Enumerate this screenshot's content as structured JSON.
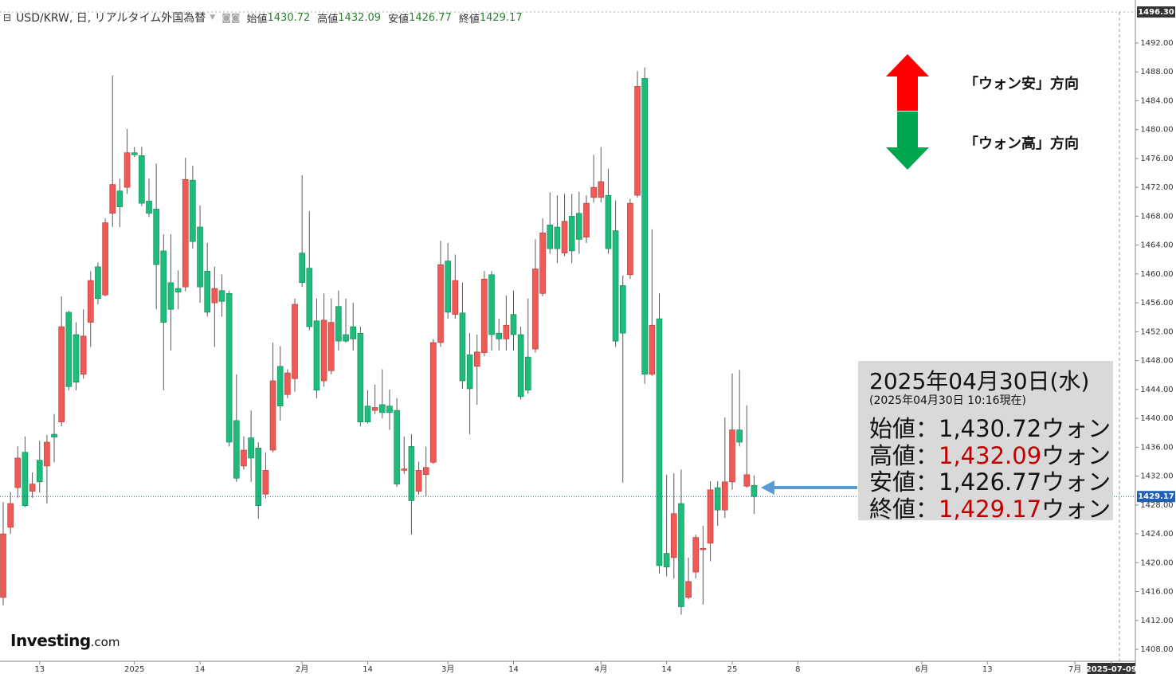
{
  "chart_data": {
    "type": "candlestick",
    "title": "USD/KRW, 日, リアルタイム外国為替",
    "categories": [
      null,
      null,
      null,
      null,
      null,
      "13",
      null,
      null,
      null,
      null,
      null,
      null,
      null,
      null,
      null,
      null,
      null,
      null,
      "2025",
      null,
      null,
      null,
      null,
      null,
      null,
      null,
      null,
      "14",
      null,
      null,
      null,
      null,
      null,
      null,
      null,
      null,
      null,
      null,
      null,
      null,
      null,
      "2月",
      null,
      null,
      null,
      null,
      null,
      null,
      null,
      null,
      "14",
      null,
      null,
      null,
      null,
      null,
      null,
      null,
      null,
      null,
      null,
      "3月",
      null,
      null,
      null,
      null,
      null,
      null,
      null,
      null,
      "14",
      null,
      null,
      null,
      null,
      null,
      null,
      null,
      null,
      null,
      null,
      null,
      "4月",
      null,
      null,
      null,
      null,
      null,
      null,
      null,
      null,
      "14",
      null,
      null,
      null,
      null,
      null,
      null,
      null,
      null,
      "25",
      null,
      null,
      null,
      null,
      null,
      null,
      null,
      null,
      "8",
      null,
      null,
      null,
      null,
      null,
      null,
      null,
      null,
      null,
      null,
      null,
      null,
      null,
      null,
      null,
      null,
      "6月",
      null,
      null,
      null,
      null,
      null,
      null,
      null,
      null,
      "13",
      null,
      null,
      null,
      null,
      null,
      null,
      null,
      null,
      null,
      null,
      null,
      "7月",
      null,
      null,
      null,
      null,
      "2025-07-09"
    ],
    "open": [
      1415.2,
      1424.9,
      1430.4,
      1435.3,
      1429.9,
      1434.2,
      1433.4,
      1437.8,
      1439.5,
      1454.7,
      1451.6,
      1446.1,
      1453.3,
      1461.0,
      1457.1,
      1468.4,
      1471.5,
      1472.0,
      1476.8,
      1476.4,
      1470.1,
      1469.0,
      1463.2,
      1458.8,
      1458.0,
      1458.2,
      1473.0,
      1466.5,
      1460.4,
      1456.0,
      1457.7,
      1457.3,
      1439.7,
      1433.4,
      1437.3,
      1435.9,
      1429.5,
      1435.6,
      1447.2,
      1443.3,
      1445.5,
      1462.9,
      1460.8,
      1453.5,
      1445.2,
      1446.6,
      1455.5,
      1451.6,
      1452.7,
      1451.8,
      1441.7,
      1441.1,
      1441.9,
      1441.7,
      1441.1,
      1432.8,
      1436.1,
      1429.9,
      1432.2,
      1433.9,
      1450.5,
      1461.8,
      1454.4,
      1454.6,
      1448.8,
      1447.2,
      1449.1,
      1459.9,
      1451.8,
      1451.0,
      1454.4,
      1451.6,
      1448.5,
      1449.6,
      1457.3,
      1466.8,
      1466.5,
      1462.9,
      1468.0,
      1468.4,
      1465.1,
      1470.6,
      1470.6,
      1470.9,
      1466.0,
      1458.4,
      1459.9,
      1470.9,
      1487.1,
      1446.1,
      1453.8,
      1421.3,
      1420.7,
      1428.2,
      1415.2,
      1418.7,
      1421.8,
      1422.7,
      1430.4,
      1427.3,
      1431.2,
      1438.4,
      1430.6,
      1430.72,
      null,
      null,
      null,
      null,
      null,
      null,
      null,
      null,
      null,
      null,
      null,
      null,
      null,
      null,
      null,
      null,
      null,
      null,
      null,
      null,
      null,
      null,
      null,
      null,
      null,
      null,
      null,
      null,
      null,
      null,
      null,
      null,
      null,
      null,
      null,
      null,
      null,
      null,
      null,
      null,
      null,
      null,
      null,
      null,
      null,
      null,
      null,
      null,
      null
    ],
    "high": [
      1428.4,
      1429.8,
      1436.1,
      1437.5,
      1432.5,
      1436.9,
      1437.7,
      1440.6,
      1456.9,
      1454.9,
      1453.3,
      1455.1,
      1460.4,
      1461.6,
      1467.7,
      1487.5,
      1473.2,
      1480.1,
      1477.6,
      1477.6,
      1473.2,
      1475.3,
      1465.5,
      1465.5,
      1460.5,
      1476.1,
      1475.0,
      1469.5,
      1464.3,
      1461.0,
      1459.9,
      1457.7,
      1446.1,
      1437.5,
      1441.1,
      1436.7,
      1435.3,
      1450.5,
      1450.0,
      1446.8,
      1456.6,
      1473.7,
      1468.7,
      1456.6,
      1457.3,
      1456.6,
      1457.7,
      1456.6,
      1456.0,
      1452.7,
      1443.9,
      1444.7,
      1446.8,
      1444.0,
      1442.8,
      1437.5,
      1437.8,
      1434.0,
      1436.1,
      1451.0,
      1464.6,
      1464.3,
      1462.7,
      1458.8,
      1451.8,
      1451.6,
      1460.4,
      1460.4,
      1453.8,
      1457.0,
      1457.7,
      1452.7,
      1456.6,
      1464.8,
      1467.7,
      1471.3,
      1470.9,
      1471.1,
      1471.1,
      1471.4,
      1470.9,
      1476.5,
      1477.6,
      1474.6,
      1470.2,
      1459.8,
      1470.4,
      1488.1,
      1488.6,
      1466.2,
      1457.3,
      1432.2,
      1432.4,
      1432.9,
      1420.7,
      1423.9,
      1425.1,
      1431.3,
      1431.3,
      1440.1,
      1446.2,
      1446.7,
      1441.8,
      1432.09,
      null,
      null,
      null,
      null,
      null,
      null,
      null,
      null,
      null,
      null,
      null,
      null,
      null,
      null,
      null,
      null,
      null,
      null,
      null,
      null,
      null,
      null,
      null,
      null,
      null,
      null,
      null,
      null,
      null,
      null,
      null,
      null,
      null,
      null,
      null,
      null,
      null,
      null,
      null,
      null,
      null,
      null,
      null,
      null,
      null,
      null,
      null,
      null,
      null
    ],
    "low": [
      1414.1,
      1424.0,
      1429.0,
      1427.7,
      1429.0,
      1429.7,
      1428.2,
      1433.9,
      1438.9,
      1443.9,
      1443.9,
      1445.5,
      1449.9,
      1455.8,
      1456.9,
      1466.5,
      1466.5,
      1471.1,
      1476.2,
      1469.4,
      1467.9,
      1455.1,
      1443.9,
      1449.4,
      1455.1,
      1457.6,
      1463.5,
      1456.0,
      1454.1,
      1449.9,
      1454.1,
      1436.1,
      1431.2,
      1432.9,
      1431.2,
      1426.1,
      1428.9,
      1435.3,
      1439.7,
      1442.8,
      1443.7,
      1458.2,
      1452.2,
      1442.8,
      1444.4,
      1446.1,
      1449.4,
      1450.5,
      1449.4,
      1438.9,
      1439.3,
      1440.6,
      1440.0,
      1438.4,
      1430.5,
      1432.3,
      1423.9,
      1429.4,
      1429.2,
      1433.7,
      1449.9,
      1453.8,
      1453.8,
      1444.1,
      1437.8,
      1441.9,
      1448.6,
      1449.4,
      1449.4,
      1449.4,
      1449.4,
      1442.6,
      1443.4,
      1449.1,
      1456.9,
      1462.8,
      1461.5,
      1462.5,
      1461.5,
      1462.8,
      1464.3,
      1469.9,
      1469.9,
      1462.8,
      1449.9,
      1431.1,
      1459.3,
      1470.6,
      1444.8,
      1445.9,
      1418.5,
      1418.1,
      1417.8,
      1412.8,
      1414.9,
      1417.8,
      1414.2,
      1420.2,
      1425.1,
      1426.2,
      1430.1,
      1436.1,
      1430.4,
      1426.77,
      null,
      null,
      null,
      null,
      null,
      null,
      null,
      null,
      null,
      null,
      null,
      null,
      null,
      null,
      null,
      null,
      null,
      null,
      null,
      null,
      null,
      null,
      null,
      null,
      null,
      null,
      null,
      null,
      null,
      null,
      null,
      null,
      null,
      null,
      null,
      null,
      null,
      null,
      null,
      null,
      null,
      null,
      null,
      null,
      null,
      null,
      null,
      null,
      null
    ],
    "close": [
      1424.0,
      1428.2,
      1434.5,
      1427.9,
      1430.9,
      1431.2,
      1436.7,
      1437.4,
      1452.7,
      1444.4,
      1445.0,
      1451.4,
      1459.1,
      1456.6,
      1467.1,
      1472.4,
      1469.3,
      1476.8,
      1476.5,
      1469.8,
      1468.4,
      1461.3,
      1453.3,
      1455.1,
      1457.5,
      1473.1,
      1464.5,
      1458.2,
      1454.7,
      1458.0,
      1456.2,
      1436.7,
      1431.7,
      1435.6,
      1434.5,
      1427.9,
      1432.8,
      1445.2,
      1441.7,
      1446.3,
      1455.8,
      1458.8,
      1452.7,
      1443.9,
      1453.6,
      1453.3,
      1450.7,
      1450.7,
      1451.0,
      1439.5,
      1439.5,
      1441.5,
      1440.8,
      1440.8,
      1430.9,
      1433.0,
      1428.6,
      1432.8,
      1433.2,
      1450.5,
      1461.3,
      1454.7,
      1459.1,
      1445.2,
      1444.1,
      1449.2,
      1459.3,
      1451.6,
      1451.0,
      1452.9,
      1451.6,
      1443.0,
      1443.9,
      1460.7,
      1465.7,
      1463.5,
      1463.5,
      1467.3,
      1463.2,
      1464.8,
      1469.8,
      1472.0,
      1472.8,
      1463.5,
      1450.7,
      1451.8,
      1469.8,
      1486.0,
      1446.1,
      1452.9,
      1419.6,
      1419.4,
      1426.8,
      1413.9,
      1417.4,
      1423.5,
      1422.0,
      1430.1,
      1427.3,
      1431.2,
      1438.4,
      1436.7,
      1432.2,
      1429.17,
      null,
      null,
      null,
      null,
      null,
      null,
      null,
      null,
      null,
      null,
      null,
      null,
      null,
      null,
      null,
      null,
      null,
      null,
      null,
      null,
      null,
      null,
      null,
      null,
      null,
      null,
      null,
      null,
      null,
      null,
      null,
      null,
      null,
      null,
      null,
      null,
      null,
      null,
      null,
      null,
      null,
      null,
      null,
      null,
      null,
      null,
      null,
      null,
      null
    ],
    "up_color": "#ef5a57",
    "down_color": "#1fbb7a",
    "wick_color": "#5a5a5a",
    "last_price_color": "#1f5fb4",
    "ylim": [
      1406.35,
      1496.3
    ],
    "top_label": "1496.30",
    "yticks": [
      {
        "value": 1408,
        "label": "1408.00"
      },
      {
        "value": 1412,
        "label": "1412.00"
      },
      {
        "value": 1416,
        "label": "1416.00"
      },
      {
        "value": 1420,
        "label": "1420.00"
      },
      {
        "value": 1424,
        "label": "1424.00"
      },
      {
        "value": 1428,
        "label": "1428.00"
      },
      {
        "value": 1432,
        "label": "1432.00"
      },
      {
        "value": 1436,
        "label": "1436.00"
      },
      {
        "value": 1440,
        "label": "1440.00"
      },
      {
        "value": 1444,
        "label": "1444.00"
      },
      {
        "value": 1448,
        "label": "1448.00"
      },
      {
        "value": 1452,
        "label": "1452.00"
      },
      {
        "value": 1456,
        "label": "1456.00"
      },
      {
        "value": 1460,
        "label": "1460.00"
      },
      {
        "value": 1464,
        "label": "1464.00"
      },
      {
        "value": 1468,
        "label": "1468.00"
      },
      {
        "value": 1472,
        "label": "1472.00"
      },
      {
        "value": 1476,
        "label": "1476.00"
      },
      {
        "value": 1480,
        "label": "1480.00"
      },
      {
        "value": 1484,
        "label": "1484.00"
      },
      {
        "value": 1488,
        "label": "1488.00"
      },
      {
        "value": 1492,
        "label": "1492.00"
      }
    ],
    "grid": false,
    "y_axis_side": "right"
  },
  "header": {
    "labels": [
      "始値",
      "高値",
      "安値",
      "終値"
    ]
  },
  "legend_arrows": {
    "up_text": "「ウォン安」方向",
    "down_text": "「ウォン高」方向"
  },
  "info_box": {
    "date": "2025年04月30日(水)",
    "timestamp": "(2025年04月30日 10:16現在)",
    "rows": [
      {
        "name": "始値：",
        "value_label": "1,430.72",
        "unit": "ウォン",
        "color": "#111111"
      },
      {
        "name": "高値：",
        "value_label": "1,432.09",
        "unit": "ウォン",
        "color": "#c00000"
      },
      {
        "name": "安値：",
        "value_label": "1,426.77",
        "unit": "ウォン",
        "color": "#111111"
      },
      {
        "name": "終値：",
        "value_label": "1,429.17",
        "unit": "ウォン",
        "color": "#c00000"
      }
    ]
  },
  "logo": {
    "name": "Investing",
    "suffix": ".com"
  }
}
